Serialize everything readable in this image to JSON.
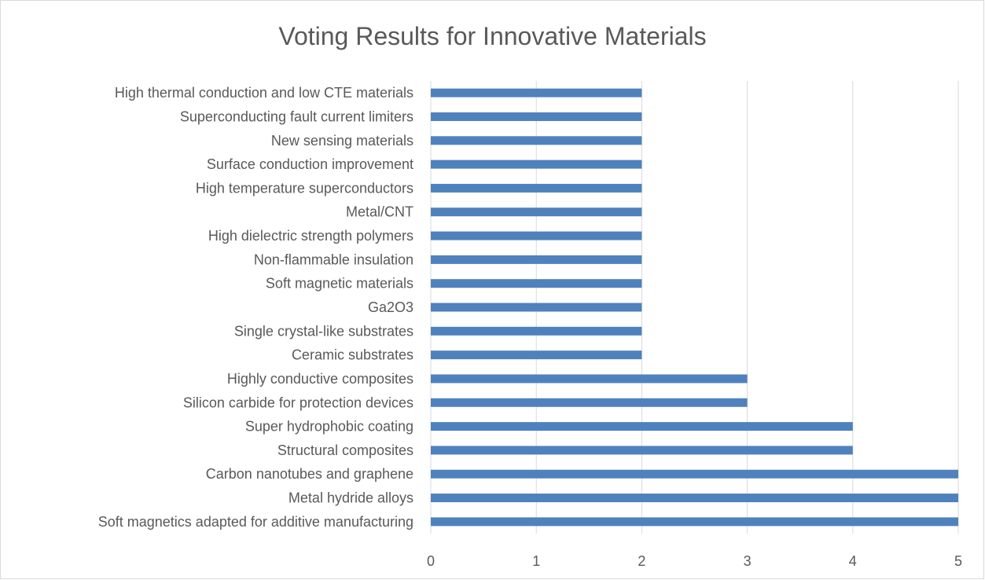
{
  "chart_data": {
    "type": "bar",
    "orientation": "horizontal",
    "title": "Voting Results for Innovative Materials",
    "xlabel": "",
    "ylabel": "",
    "xlim": [
      0,
      5
    ],
    "xticks": [
      "0",
      "1",
      "2",
      "3",
      "4",
      "5"
    ],
    "grid": "vertical",
    "legend": "none",
    "bar_color": "#4f81bd",
    "grid_color": "#d9d9d9",
    "categories": [
      "Soft magnetics adapted for additive manufacturing",
      "Metal hydride alloys",
      "Carbon nanotubes and graphene",
      "Structural composites",
      "Super hydrophobic coating",
      "Silicon carbide for protection devices",
      "Highly conductive composites",
      "Ceramic substrates",
      "Single crystal-like substrates",
      "Ga2O3",
      "Soft magnetic materials",
      "Non-flammable insulation",
      "High dielectric strength polymers",
      "Metal/CNT",
      "High temperature superconductors",
      "Surface conduction improvement",
      "New sensing materials",
      "Superconducting fault current limiters",
      "High thermal conduction and low CTE materials"
    ],
    "values": [
      5,
      5,
      5,
      4,
      4,
      3,
      3,
      2,
      2,
      2,
      2,
      2,
      2,
      2,
      2,
      2,
      2,
      2,
      2
    ]
  }
}
